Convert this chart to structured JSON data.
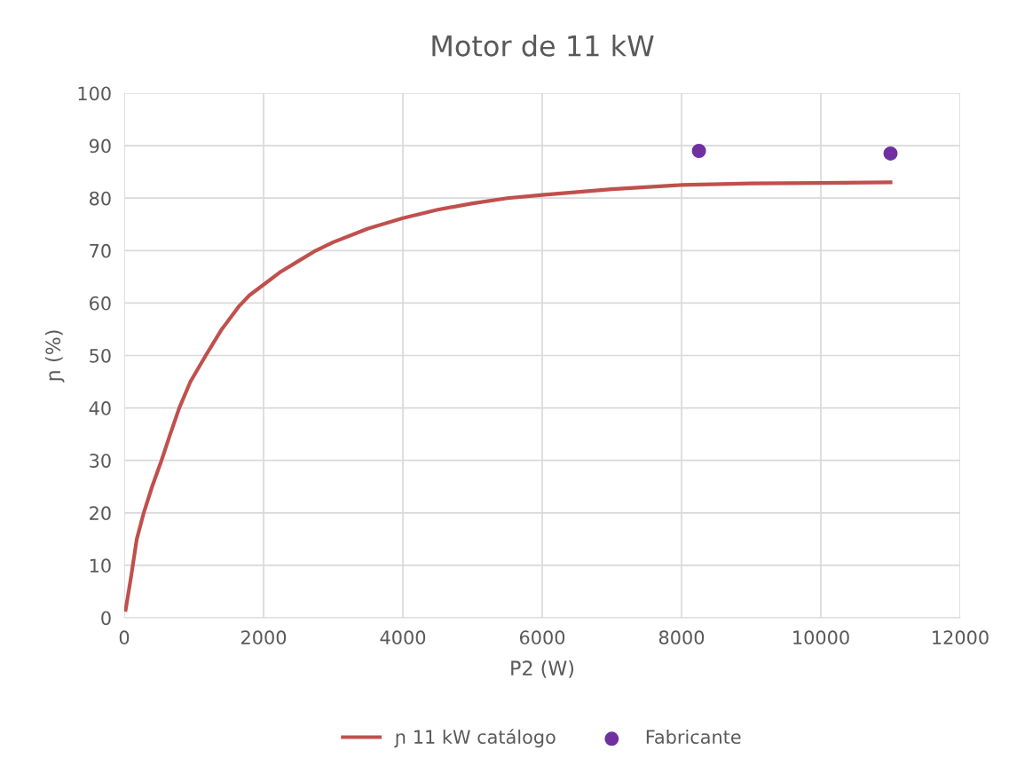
{
  "chart_data": {
    "type": "line",
    "title": "Motor de 11 kW",
    "xlabel": "P2 (W)",
    "ylabel": "ɲ (%)",
    "xlim": [
      0,
      12000
    ],
    "xticks": [
      0,
      2000,
      4000,
      6000,
      8000,
      10000,
      12000
    ],
    "ylim": [
      0,
      100
    ],
    "yticks": [
      0,
      10,
      20,
      30,
      40,
      50,
      60,
      70,
      80,
      90,
      100
    ],
    "grid": true,
    "legend": "bottom",
    "series": [
      {
        "name": "ɲ 11 kW catálogo",
        "color": "#c0504d",
        "marker": "none",
        "x": [
          20,
          100,
          180,
          280,
          400,
          535,
          660,
          790,
          950,
          1170,
          1400,
          1655,
          1800,
          2000,
          2250,
          2500,
          2750,
          3000,
          3500,
          4000,
          4500,
          5000,
          5500,
          6000,
          7000,
          8000,
          9000,
          10000,
          11000
        ],
        "values": [
          1.5,
          8,
          15,
          20,
          25,
          30,
          35,
          40,
          45,
          50,
          55,
          59.5,
          61.5,
          63.5,
          66,
          68,
          70,
          71.6,
          74.2,
          76.2,
          77.8,
          79,
          80,
          80.6,
          81.7,
          82.5,
          82.8,
          82.9,
          83
        ]
      },
      {
        "name": "Fabricante",
        "type": "scatter",
        "color": "#7030a0",
        "marker": "circle",
        "x": [
          8250,
          11000
        ],
        "values": [
          89,
          88.5
        ]
      }
    ]
  }
}
